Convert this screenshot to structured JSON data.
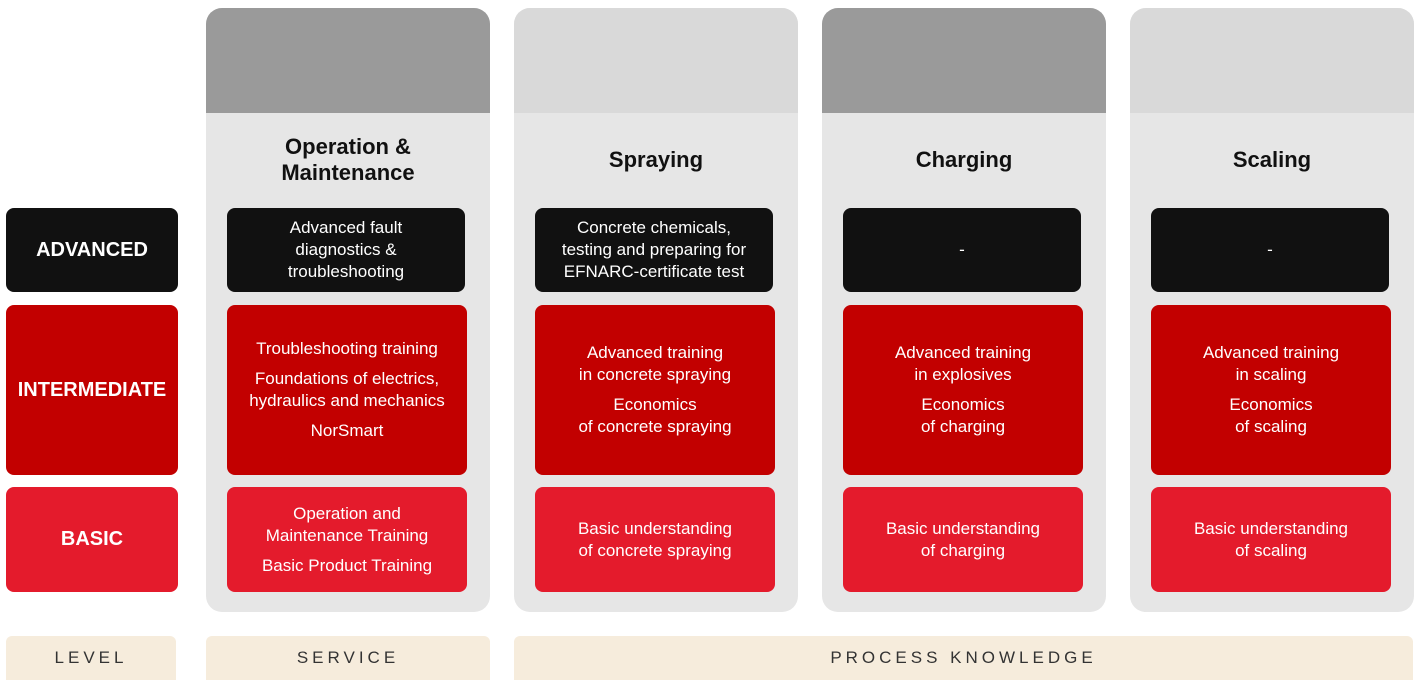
{
  "levels": [
    "ADVANCED",
    "INTERMEDIATE",
    "BASIC"
  ],
  "columns": [
    {
      "title": "Operation & Maintenance",
      "advanced": [
        [
          "Advanced fault",
          "diagnostics &",
          "troubleshooting"
        ]
      ],
      "intermediate": [
        [
          "Troubleshooting training"
        ],
        [
          "Foundations of electrics,",
          "hydraulics and mechanics"
        ],
        [
          "NorSmart"
        ]
      ],
      "basic": [
        [
          "Operation and",
          "Maintenance Training"
        ],
        [
          "Basic Product Training"
        ]
      ]
    },
    {
      "title": "Spraying",
      "advanced": [
        [
          "Concrete chemicals,",
          "testing and preparing for",
          "EFNARC-certificate test"
        ]
      ],
      "intermediate": [
        [
          "Advanced training",
          "in concrete spraying"
        ],
        [
          "Economics",
          "of concrete spraying"
        ]
      ],
      "basic": [
        [
          "Basic understanding",
          "of concrete spraying"
        ]
      ]
    },
    {
      "title": "Charging",
      "advanced": [
        [
          "-"
        ]
      ],
      "intermediate": [
        [
          "Advanced training",
          "in explosives"
        ],
        [
          "Economics",
          "of charging"
        ]
      ],
      "basic": [
        [
          "Basic understanding",
          "of charging"
        ]
      ]
    },
    {
      "title": "Scaling",
      "advanced": [
        [
          "-"
        ]
      ],
      "intermediate": [
        [
          "Advanced training",
          "in scaling"
        ],
        [
          "Economics",
          "of scaling"
        ]
      ],
      "basic": [
        [
          "Basic understanding",
          "of scaling"
        ]
      ]
    }
  ],
  "footer": [
    "LEVEL",
    "SERVICE",
    "PROCESS KNOWLEDGE"
  ]
}
